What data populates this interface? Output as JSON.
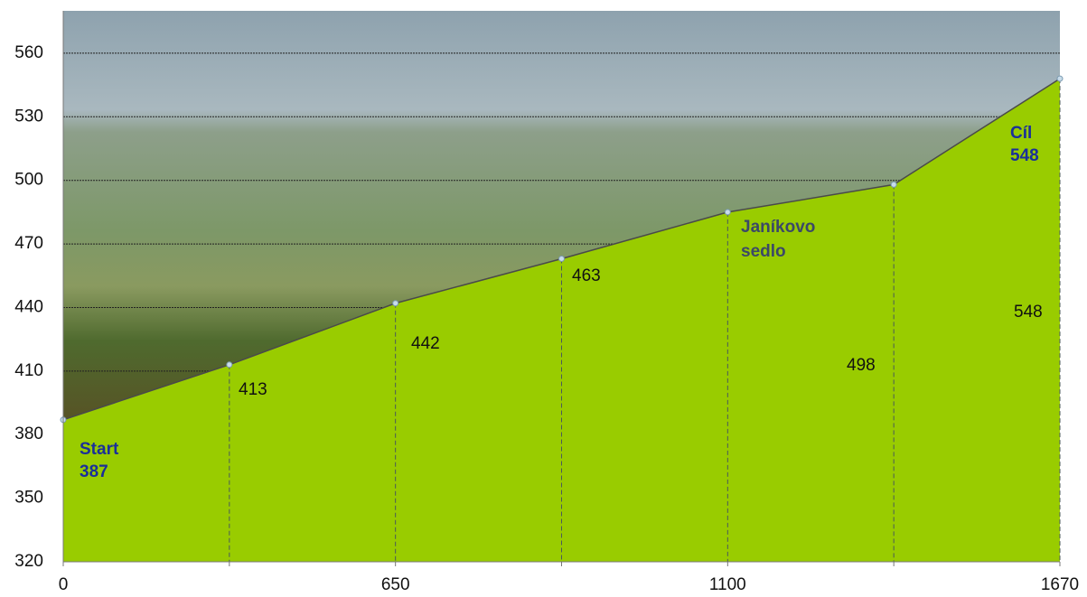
{
  "chart_data": {
    "type": "area",
    "categories": [
      "0",
      null,
      "650",
      null,
      "1100",
      null,
      "1670"
    ],
    "series": [
      {
        "color": "#99cc00",
        "values": [
          387,
          413,
          442,
          463,
          485,
          498,
          548
        ]
      }
    ],
    "ylim": [
      320,
      580
    ],
    "yticks": [
      320,
      350,
      380,
      410,
      440,
      470,
      500,
      530,
      560
    ],
    "grid": true,
    "annotations": [
      {
        "text": "Start"
      },
      {
        "lines": [
          "Janíkovo",
          "sedlo"
        ]
      },
      {
        "text": "Cíl"
      }
    ]
  }
}
